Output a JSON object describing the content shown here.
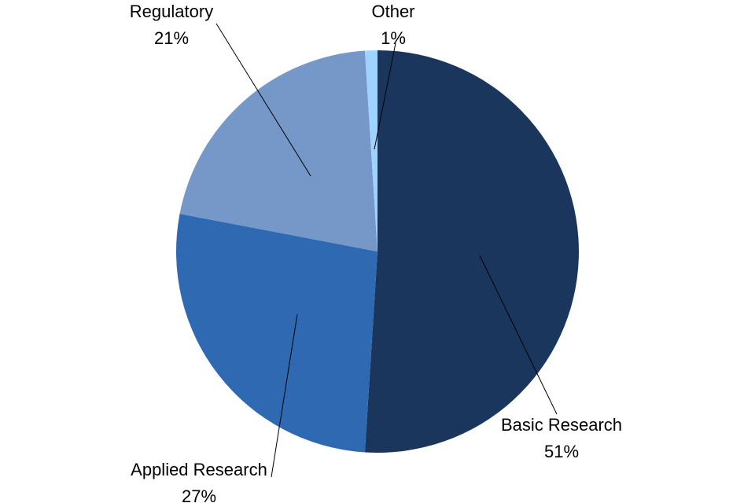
{
  "chart_data": {
    "type": "pie",
    "start_angle_deg": 0,
    "direction": "clockwise",
    "slices": [
      {
        "label": "Basic Research",
        "value": 51,
        "value_label": "51%",
        "color": "#1a365d"
      },
      {
        "label": "Applied Research",
        "value": 27,
        "value_label": "27%",
        "color": "#2e69b1"
      },
      {
        "label": "Regulatory",
        "value": 21,
        "value_label": "21%",
        "color": "#7598c8"
      },
      {
        "label": "Other",
        "value": 1,
        "value_label": "1%",
        "color": "#9fd3ff"
      }
    ]
  }
}
